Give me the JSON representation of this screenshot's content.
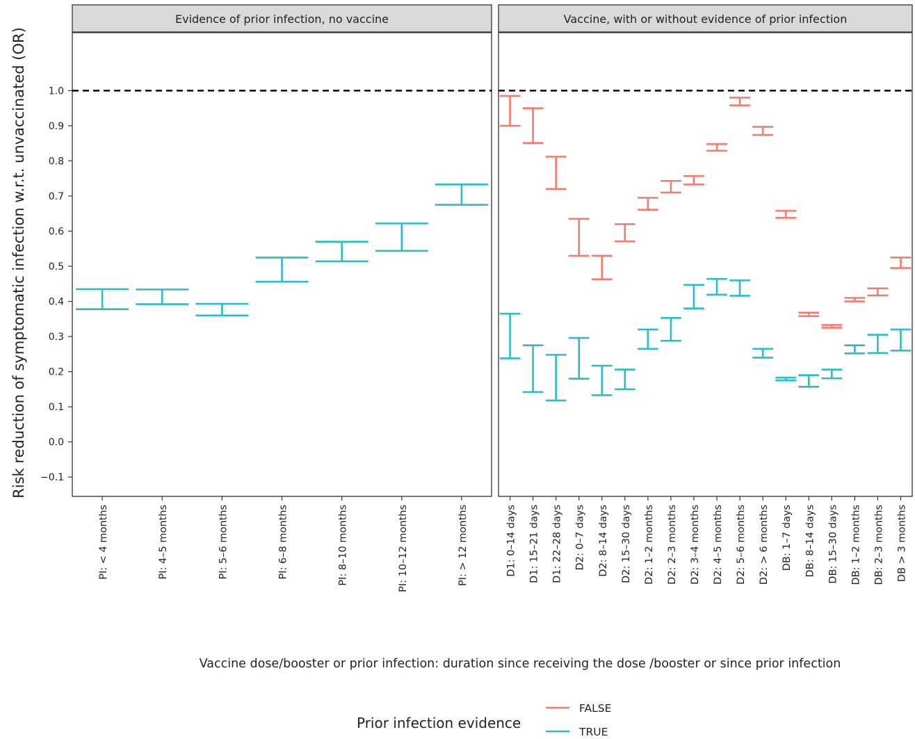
{
  "chart_data": {
    "type": "errorbar",
    "ylabel": "Risk reduction of symptomatic infection w.r.t. unvaccinated (OR)",
    "xlabel": "Vaccine dose/booster or prior infection: duration since receiving the dose /booster or since prior infection",
    "ylim": [
      -0.155,
      1.165
    ],
    "yticks": [
      -0.1,
      0.0,
      0.1,
      0.2,
      0.3,
      0.4,
      0.5,
      0.6,
      0.7,
      0.8,
      0.9,
      1.0
    ],
    "ytick_labels": [
      "−0.1",
      "0.0",
      "0.1",
      "0.2",
      "0.3",
      "0.4",
      "0.5",
      "0.6",
      "0.7",
      "0.8",
      "0.9",
      "1.0"
    ],
    "reference_line": 1.0,
    "grid": false,
    "legend": {
      "title": "Prior infection evidence",
      "placement": "bottom",
      "entries": [
        {
          "label": "FALSE",
          "color": "#ef7d72"
        },
        {
          "label": "TRUE",
          "color": "#2ebcc3"
        }
      ]
    },
    "panels": [
      {
        "title": "Evidence of prior infection, no vaccine",
        "categories": [
          "PI: < 4  months",
          "PI: 4–5  months",
          "PI: 5–6  months",
          "PI: 6–8  months",
          "PI: 8–10  months",
          "PI: 10–12  months",
          "PI: > 12  months"
        ],
        "series": [
          {
            "name": "TRUE",
            "color": "#2ebcc3",
            "lower": [
              0.378,
              0.392,
              0.36,
              0.456,
              0.514,
              0.544,
              0.675
            ],
            "upper": [
              0.435,
              0.434,
              0.393,
              0.525,
              0.57,
              0.622,
              0.733
            ]
          }
        ]
      },
      {
        "title": "Vaccine, with or without evidence of prior infection",
        "categories": [
          "D1: 0–14  days",
          "D1: 15–21  days",
          "D1: 22–28  days",
          "D2: 0–7  days",
          "D2: 8–14  days",
          "D2: 15–30  days",
          "D2: 1–2  months",
          "D2: 2–3  months",
          "D2: 3–4  months",
          "D2: 4–5  months",
          "D2: 5–6  months",
          "D2: > 6  months",
          "DB: 1–7  days",
          "DB: 8–14  days",
          "DB: 15–30  days",
          "DB: 1–2  months",
          "DB: 2–3  months",
          "DB > 3  months"
        ],
        "series": [
          {
            "name": "FALSE",
            "color": "#ef7d72",
            "lower": [
              0.9,
              0.851,
              0.72,
              0.53,
              0.463,
              0.571,
              0.661,
              0.71,
              0.733,
              0.829,
              0.958,
              0.874,
              0.638,
              0.358,
              0.325,
              0.4,
              0.417,
              0.495
            ],
            "upper": [
              0.985,
              0.95,
              0.812,
              0.635,
              0.53,
              0.62,
              0.695,
              0.743,
              0.757,
              0.848,
              0.98,
              0.897,
              0.658,
              0.368,
              0.333,
              0.41,
              0.437,
              0.525
            ]
          },
          {
            "name": "TRUE",
            "color": "#2ebcc3",
            "lower": [
              0.238,
              0.142,
              0.118,
              0.18,
              0.133,
              0.15,
              0.265,
              0.288,
              0.38,
              0.419,
              0.416,
              0.24,
              0.175,
              0.157,
              0.181,
              0.252,
              0.253,
              0.26
            ],
            "upper": [
              0.365,
              0.275,
              0.248,
              0.296,
              0.217,
              0.206,
              0.32,
              0.353,
              0.447,
              0.464,
              0.46,
              0.265,
              0.183,
              0.19,
              0.206,
              0.275,
              0.305,
              0.32
            ]
          }
        ]
      }
    ]
  }
}
